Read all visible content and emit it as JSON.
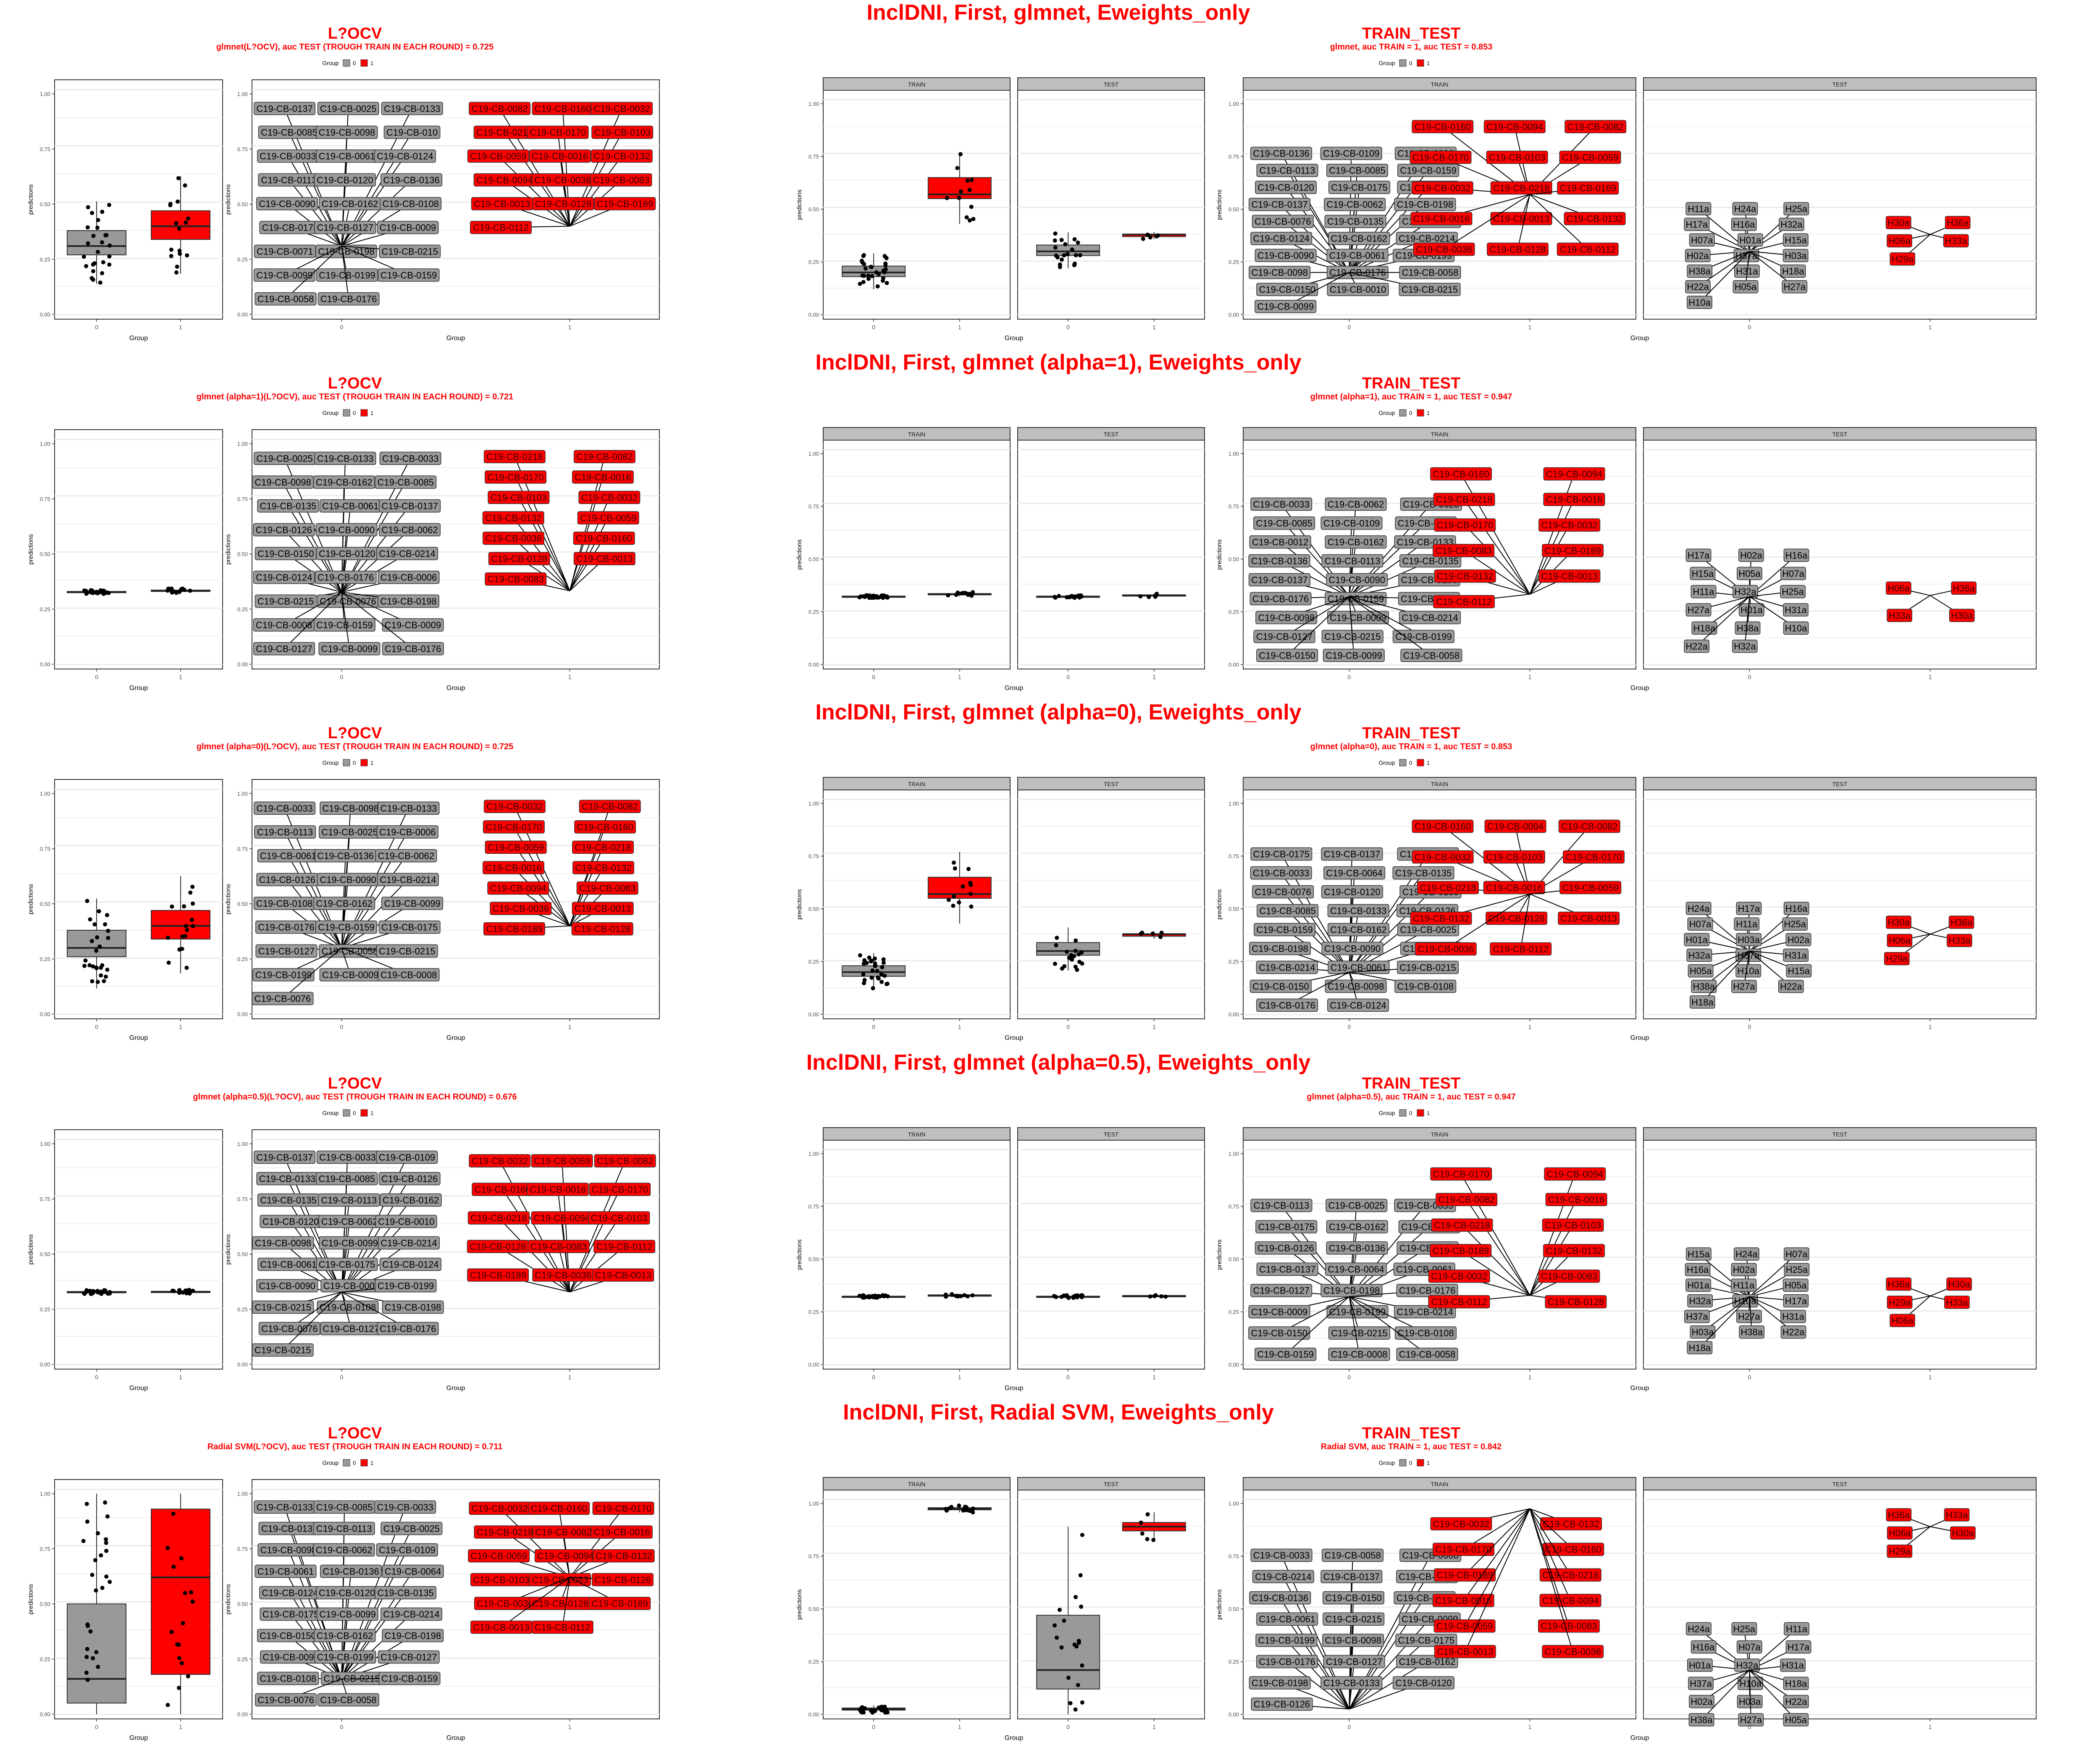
{
  "colors": {
    "group0": "#999999",
    "group1": "#ff0000",
    "title": "#ff0000",
    "panel_border": "#333333",
    "grid": "#ebebeb",
    "strip_fill": "#bfbfbf"
  },
  "common": {
    "y_label": "predictions",
    "x_label": "Group",
    "legend_title": "Group",
    "legend_items": [
      "0",
      "1"
    ],
    "y_ticks": [
      "0.00",
      "0.25",
      "0.50",
      "0.75",
      "1.00"
    ],
    "x_ticks": [
      "0",
      "1"
    ],
    "strip_train": "TRAIN",
    "strip_test": "TEST"
  },
  "rows": [
    {
      "big_title": "InclDNI, First, glmnet, Eweights_only",
      "locv": {
        "title": "L?OCV",
        "subtitle": "glmnet(L?OCV), auc TEST (TROUGH TRAIN IN EACH ROUND) = 0.725"
      },
      "tt": {
        "title": "TRAIN_TEST",
        "subtitle": "glmnet, auc TRAIN = 1, auc TEST = 0.853"
      }
    },
    {
      "big_title": "InclDNI, First, glmnet (alpha=1), Eweights_only",
      "locv": {
        "title": "L?OCV",
        "subtitle": "glmnet (alpha=1)(L?OCV), auc TEST (TROUGH TRAIN IN EACH ROUND) = 0.721"
      },
      "tt": {
        "title": "TRAIN_TEST",
        "subtitle": "glmnet (alpha=1), auc TRAIN = 1, auc TEST = 0.947"
      }
    },
    {
      "big_title": "InclDNI, First, glmnet (alpha=0), Eweights_only",
      "locv": {
        "title": "L?OCV",
        "subtitle": "glmnet (alpha=0)(L?OCV), auc TEST (TROUGH TRAIN IN EACH ROUND) = 0.725"
      },
      "tt": {
        "title": "TRAIN_TEST",
        "subtitle": "glmnet (alpha=0), auc TRAIN = 1, auc TEST = 0.853"
      }
    },
    {
      "big_title": "InclDNI, First, glmnet (alpha=0.5), Eweights_only",
      "locv": {
        "title": "L?OCV",
        "subtitle": "glmnet (alpha=0.5)(L?OCV), auc TEST (TROUGH TRAIN IN EACH ROUND) = 0.676"
      },
      "tt": {
        "title": "TRAIN_TEST",
        "subtitle": "glmnet (alpha=0.5), auc TRAIN = 1, auc TEST = 0.947"
      }
    },
    {
      "big_title": "InclDNI, First, Radial SVM, Eweights_only",
      "locv": {
        "title": "L?OCV",
        "subtitle": "Radial SVM(L?OCV), auc TEST (TROUGH TRAIN IN EACH ROUND) = 0.711"
      },
      "tt": {
        "title": "TRAIN_TEST",
        "subtitle": "Radial SVM, auc TRAIN = 1, auc TEST = 0.842"
      }
    }
  ],
  "chart_data": [
    {
      "type": "box",
      "row": 0,
      "panel": "locv",
      "ylim": [
        0,
        1
      ],
      "box": {
        "g0": [
          0.27,
          0.31,
          0.38
        ],
        "g1": [
          0.34,
          0.4,
          0.47
        ]
      },
      "labels_g0": [
        "C19-CB-0137",
        "C19-CB-0025",
        "C19-CB-0133",
        "C19-CB-0085",
        "C19-CB-0098",
        "C19-CB-010",
        "C19-CB-0033",
        "C19-CB-0061",
        "C19-CB-0124",
        "C19-CB-0113",
        "C19-CB-0120",
        "C19-CB-0136",
        "C19-CB-0090",
        "C19-CB-0162",
        "C19-CB-0108",
        "C19-CB-0175",
        "C19-CB-0127",
        "C19-CB-0009",
        "C19-CB-0071",
        "C19-CB-0198",
        "C19-CB-0215",
        "C19-CB-0099",
        "C19-CB-0199",
        "C19-CB-0159",
        "C19-CB-0058",
        "C19-CB-0176"
      ],
      "labels_g1": [
        "C19-CB-0082",
        "C19-CB-0160",
        "C19-CB-0032",
        "C19-CB-0218",
        "C19-CB-0170",
        "C19-CB-0103",
        "C19-CB-0059",
        "C19-CB-0016",
        "C19-CB-0132",
        "C19-CB-0094",
        "C19-CB-0036",
        "C19-CB-0083",
        "C19-CB-0013",
        "C19-CB-0128",
        "C19-CB-0189",
        "C19-CB-0112"
      ]
    },
    {
      "type": "box",
      "row": 0,
      "panel": "tt",
      "ylim": [
        0,
        1
      ],
      "train": {
        "g0": [
          0.18,
          0.2,
          0.23
        ],
        "g1": [
          0.55,
          0.57,
          0.65
        ]
      },
      "test": {
        "g0": [
          0.28,
          0.3,
          0.33
        ],
        "g1": [
          0.37,
          0.38,
          0.38
        ]
      },
      "labels_train_g0": [
        "C19-CB-0136",
        "C19-CB-0109",
        "C19-CB-0033",
        "C19-CB-0113",
        "C19-CB-0085",
        "C19-CB-0159",
        "C19-CB-0120",
        "C19-CB-0175",
        "C19-CB-0126",
        "C19-CB-0137",
        "C19-CB-0062",
        "C19-CB-0198",
        "C19-CB-0076",
        "C19-CB-0135",
        "C19-CB-0133",
        "C19-CB-0124",
        "C19-CB-0162",
        "C19-CB-0214",
        "C19-CB-0090",
        "C19-CB-0061",
        "C19-CB-0199",
        "C19-CB-0098",
        "C19-CB-0176",
        "C19-CB-0058",
        "C19-CB-0150",
        "C19-CB-0010",
        "C19-CB-0215",
        "C19-CB-0099"
      ],
      "labels_train_g1": [
        "C19-CB-0160",
        "C19-CB-0094",
        "C19-CB-0082",
        "C19-CB-0170",
        "C19-CB-0103",
        "C19-CB-0059",
        "C19-CB-0032",
        "C19-CB-0218",
        "C19-CB-0189",
        "C19-CB-0016",
        "C19-CB-0013",
        "C19-CB-0132",
        "C19-CB-0036",
        "C19-CB-0128",
        "C19-CB-0112"
      ],
      "labels_test_g0": [
        "H11a",
        "H24a",
        "H25a",
        "H17a",
        "H16a",
        "H32a",
        "H07a",
        "H01a",
        "H15a",
        "H02a",
        "H37a",
        "H03a",
        "H38a",
        "H31a",
        "H18a",
        "H22a",
        "H05a",
        "H27a",
        "H10a"
      ],
      "labels_test_g1": [
        "H30a",
        "H36a",
        "H06a",
        "H33a",
        "H29a"
      ]
    },
    {
      "type": "box",
      "row": 1,
      "panel": "locv",
      "ylim": [
        0,
        1
      ],
      "box": {
        "g0": [
          0.325,
          0.327,
          0.33
        ],
        "g1": [
          0.33,
          0.333,
          0.336
        ]
      },
      "labels_g0": [
        "C19-CB-0025",
        "C19-CB-0133",
        "C19-CB-0033",
        "C19-CB-0098",
        "C19-CB-0162",
        "C19-CB-0085",
        "C19-CB-0135",
        "C19-CB-0061",
        "C19-CB-0137",
        "C19-CB-0126",
        "C19-CB-0090",
        "C19-CB-0062",
        "C19-CB-0150",
        "C19-CB-0120",
        "C19-CB-0214",
        "C19-CB-0124",
        "C19-CB-0176",
        "C19-CB-0006",
        "C19-CB-0215",
        "C19-CB-0076",
        "C19-CB-0198",
        "C19-CB-0008",
        "C19-CB-0159",
        "C19-CB-0009",
        "C19-CB-0127",
        "C19-CB-0099",
        "C19-CB-0176"
      ],
      "labels_g1": [
        "C19-CB-0218",
        "C19-CB-0082",
        "C19-CB-0170",
        "C19-CB-0016",
        "C19-CB-0103",
        "C19-CB-0032",
        "C19-CB-0132",
        "C19-CB-0059",
        "C19-CB-0036",
        "C19-CB-0160",
        "C19-CB-0128",
        "C19-CB-0013",
        "C19-CB-0083"
      ]
    },
    {
      "type": "box",
      "row": 1,
      "panel": "tt",
      "ylim": [
        0,
        1
      ],
      "train": {
        "g0": [
          0.32,
          0.322,
          0.324
        ],
        "g1": [
          0.33,
          0.333,
          0.336
        ]
      },
      "test": {
        "g0": [
          0.32,
          0.322,
          0.324
        ],
        "g1": [
          0.325,
          0.327,
          0.33
        ]
      },
      "labels_train_g0": [
        "C19-CB-0033",
        "C19-CB-0062",
        "C19-CB-0025",
        "C19-CB-0085",
        "C19-CB-0109",
        "C19-CB-0175",
        "C19-CB-0012",
        "C19-CB-0162",
        "C19-CB-0133",
        "C19-CB-0136",
        "C19-CB-0113",
        "C19-CB-0135",
        "C19-CB-0137",
        "C19-CB-0090",
        "C19-CB-0198",
        "C19-CB-0176",
        "C19-CB-0159",
        "C19-CB-0124",
        "C19-CB-0098",
        "C19-CB-0009",
        "C19-CB-0214",
        "C19-CB-0127",
        "C19-CB-0215",
        "C19-CB-0199",
        "C19-CB-0150",
        "C19-CB-0099",
        "C19-CB-0058"
      ],
      "labels_train_g1": [
        "C19-CB-0160",
        "C19-CB-0094",
        "C19-CB-0218",
        "C19-CB-0016",
        "C19-CB-0170",
        "C19-CB-0032",
        "C19-CB-0083",
        "C19-CB-0189",
        "C19-CB-0132",
        "C19-CB-0013",
        "C19-CB-0112"
      ],
      "labels_test_g0": [
        "H17a",
        "H02a",
        "H16a",
        "H15a",
        "H05a",
        "H07a",
        "H11a",
        "H32a",
        "H25a",
        "H27a",
        "H01a",
        "H31a",
        "H18a",
        "H38a",
        "H10a",
        "H22a",
        "H32a"
      ],
      "labels_test_g1": [
        "H06a",
        "H36a",
        "H33a",
        "H30a"
      ]
    },
    {
      "type": "box",
      "row": 2,
      "panel": "locv",
      "ylim": [
        0,
        1
      ],
      "box": {
        "g0": [
          0.26,
          0.3,
          0.38
        ],
        "g1": [
          0.34,
          0.4,
          0.47
        ]
      },
      "labels_g0": [
        "C19-CB-0033",
        "C19-CB-0098",
        "C19-CB-0133",
        "C19-CB-0113",
        "C19-CB-0025",
        "C19-CB-0006",
        "C19-CB-0061",
        "C19-CB-0136",
        "C19-CB-0062",
        "C19-CB-0126",
        "C19-CB-0090",
        "C19-CB-0214",
        "C19-CB-0108",
        "C19-CB-0162",
        "C19-CB-0099",
        "C19-CB-0176",
        "C19-CB-0159",
        "C19-CB-0175",
        "C19-CB-0127",
        "C19-CB-0058",
        "C19-CB-0215",
        "C19-CB-0199",
        "C19-CB-0009",
        "C19-CB-0008",
        "C19-CB-0076"
      ],
      "labels_g1": [
        "C19-CB-0032",
        "C19-CB-0082",
        "C19-CB-0170",
        "C19-CB-0160",
        "C19-CB-0059",
        "C19-CB-0218",
        "C19-CB-0016",
        "C19-CB-0132",
        "C19-CB-0094",
        "C19-CB-0083",
        "C19-CB-0036",
        "C19-CB-0013",
        "C19-CB-0189",
        "C19-CB-0128"
      ]
    },
    {
      "type": "box",
      "row": 2,
      "panel": "tt",
      "ylim": [
        0,
        1
      ],
      "train": {
        "g0": [
          0.18,
          0.2,
          0.23
        ],
        "g1": [
          0.55,
          0.57,
          0.65
        ]
      },
      "test": {
        "g0": [
          0.28,
          0.3,
          0.34
        ],
        "g1": [
          0.37,
          0.38,
          0.38
        ]
      },
      "labels_train_g0": [
        "C19-CB-0175",
        "C19-CB-0137",
        "C19-CB-0062",
        "C19-CB-0033",
        "C19-CB-0064",
        "C19-CB-0135",
        "C19-CB-0076",
        "C19-CB-0120",
        "C19-CB-0109",
        "C19-CB-0085",
        "C19-CB-0133",
        "C19-CB-0126",
        "C19-CB-0159",
        "C19-CB-0162",
        "C19-CB-0025",
        "C19-CB-0198",
        "C19-CB-0090",
        "C19-CB-0199",
        "C19-CB-0214",
        "C19-CB-0061",
        "C19-CB-0215",
        "C19-CB-0150",
        "C19-CB-0098",
        "C19-CB-0108",
        "C19-CB-0176",
        "C19-CB-0124"
      ],
      "labels_train_g1": [
        "C19-CB-0160",
        "C19-CB-0094",
        "C19-CB-0082",
        "C19-CB-0032",
        "C19-CB-0103",
        "C19-CB-0170",
        "C19-CB-0218",
        "C19-CB-0016",
        "C19-CB-0059",
        "C19-CB-0132",
        "C19-CB-0128",
        "C19-CB-0013",
        "C19-CB-0036",
        "C19-CB-0112"
      ],
      "labels_test_g0": [
        "H24a",
        "H17a",
        "H16a",
        "H07a",
        "H11a",
        "H25a",
        "H01a",
        "H03a",
        "H02a",
        "H32a",
        "H37a",
        "H31a",
        "H05a",
        "H10a",
        "H15a",
        "H38a",
        "H27a",
        "H22a",
        "H18a"
      ],
      "labels_test_g1": [
        "H30a",
        "H36a",
        "H06a",
        "H33a",
        "H29a"
      ]
    },
    {
      "type": "box",
      "row": 3,
      "panel": "locv",
      "ylim": [
        0,
        1
      ],
      "box": {
        "g0": [
          0.325,
          0.327,
          0.33
        ],
        "g1": [
          0.326,
          0.328,
          0.331
        ]
      },
      "labels_g0": [
        "C19-CB-0137",
        "C19-CB-0033",
        "C19-CB-0109",
        "C19-CB-0133",
        "C19-CB-0085",
        "C19-CB-0126",
        "C19-CB-0135",
        "C19-CB-0113",
        "C19-CB-0162",
        "C19-CB-0120",
        "C19-CB-0062",
        "C19-CB-0010",
        "C19-CB-0098",
        "C19-CB-0099",
        "C19-CB-0214",
        "C19-CB-0061",
        "C19-CB-0175",
        "C19-CB-0124",
        "C19-CB-0090",
        "C19-CB-0009",
        "C19-CB-0199",
        "C19-CB-0215",
        "C19-CB-0108",
        "C19-CB-0198",
        "C19-CB-0076",
        "C19-CB-0127",
        "C19-CB-0176",
        "C19-CB-0215"
      ],
      "labels_g1": [
        "C19-CB-0032",
        "C19-CB-0059",
        "C19-CB-0082",
        "C19-CB-0160",
        "C19-CB-0016",
        "C19-CB-0170",
        "C19-CB-0218",
        "C19-CB-0094",
        "C19-CB-0103",
        "C19-CB-0128",
        "C19-CB-0083",
        "C19-CB-0112",
        "C19-CB-0189",
        "C19-CB-0036",
        "C19-CB-0013"
      ]
    },
    {
      "type": "box",
      "row": 3,
      "panel": "tt",
      "ylim": [
        0,
        1
      ],
      "train": {
        "g0": [
          0.32,
          0.322,
          0.324
        ],
        "g1": [
          0.326,
          0.328,
          0.33
        ]
      },
      "test": {
        "g0": [
          0.32,
          0.322,
          0.324
        ],
        "g1": [
          0.323,
          0.325,
          0.327
        ]
      },
      "labels_train_g0": [
        "C19-CB-0113",
        "C19-CB-0025",
        "C19-CB-0033",
        "C19-CB-0175",
        "C19-CB-0162",
        "C19-CB-0133",
        "C19-CB-0126",
        "C19-CB-0136",
        "C19-CB-0109",
        "C19-CB-0137",
        "C19-CB-0064",
        "C19-CB-0061",
        "C19-CB-0127",
        "C19-CB-0198",
        "C19-CB-0176",
        "C19-CB-0009",
        "C19-CB-0199",
        "C19-CB-0214",
        "C19-CB-0150",
        "C19-CB-0215",
        "C19-CB-0108",
        "C19-CB-0159",
        "C19-CB-0008",
        "C19-CB-0058"
      ],
      "labels_train_g1": [
        "C19-CB-0170",
        "C19-CB-0094",
        "C19-CB-0082",
        "C19-CB-0016",
        "C19-CB-0218",
        "C19-CB-0103",
        "C19-CB-0189",
        "C19-CB-0132",
        "C19-CB-0032",
        "C19-CB-0083",
        "C19-CB-0112",
        "C19-CB-0128"
      ],
      "labels_test_g0": [
        "H15a",
        "H24a",
        "H07a",
        "H16a",
        "H02a",
        "H25a",
        "H01a",
        "H11a",
        "H05a",
        "H32a",
        "H10a",
        "H17a",
        "H37a",
        "H27a",
        "H31a",
        "H03a",
        "H38a",
        "H22a",
        "H18a"
      ],
      "labels_test_g1": [
        "H36a",
        "H30a",
        "H29a",
        "H33a",
        "H06a"
      ]
    },
    {
      "type": "box",
      "row": 4,
      "panel": "locv",
      "ylim": [
        0,
        1
      ],
      "box": {
        "g0": [
          0.05,
          0.16,
          0.5
        ],
        "g1": [
          0.18,
          0.62,
          0.93
        ]
      },
      "labels_g0": [
        "C19-CB-0133",
        "C19-CB-0085",
        "C19-CB-0033",
        "C19-CB-0137",
        "C19-CB-0113",
        "C19-CB-0025",
        "C19-CB-0098",
        "C19-CB-0062",
        "C19-CB-0109",
        "C19-CB-0061",
        "C19-CB-0136",
        "C19-CB-0064",
        "C19-CB-0124",
        "C19-CB-0120",
        "C19-CB-0135",
        "C19-CB-0175",
        "C19-CB-0099",
        "C19-CB-0214",
        "C19-CB-0150",
        "C19-CB-0162",
        "C19-CB-0198",
        "C19-CB-0090",
        "C19-CB-0199",
        "C19-CB-0127",
        "C19-CB-0108",
        "C19-CB-0215",
        "C19-CB-0159",
        "C19-CB-0076",
        "C19-CB-0058"
      ],
      "labels_g1": [
        "C19-CB-0032",
        "C19-CB-0160",
        "C19-CB-0170",
        "C19-CB-0218",
        "C19-CB-0082",
        "C19-CB-0016",
        "C19-CB-0059",
        "C19-CB-0094",
        "C19-CB-0132",
        "C19-CB-0103",
        "C19-CB-0083",
        "C19-CB-0126",
        "C19-CB-0036",
        "C19-CB-0128",
        "C19-CB-0189",
        "C19-CB-0013",
        "C19-CB-0112"
      ]
    },
    {
      "type": "box",
      "row": 4,
      "panel": "tt",
      "ylim": [
        0,
        1
      ],
      "train": {
        "g0": [
          0.02,
          0.025,
          0.03
        ],
        "g1": [
          0.97,
          0.975,
          0.98
        ]
      },
      "test": {
        "g0": [
          0.12,
          0.21,
          0.47
        ],
        "g1": [
          0.87,
          0.89,
          0.91
        ]
      },
      "labels_train_g0": [
        "C19-CB-0033",
        "C19-CB-0058",
        "C19-CB-0008",
        "C19-CB-0214",
        "C19-CB-0137",
        "C19-CB-0076",
        "C19-CB-0136",
        "C19-CB-0150",
        "C19-CB-0090",
        "C19-CB-0061",
        "C19-CB-0215",
        "C19-CB-0099",
        "C19-CB-0199",
        "C19-CB-0098",
        "C19-CB-0175",
        "C19-CB-0176",
        "C19-CB-0127",
        "C19-CB-0162",
        "C19-CB-0198",
        "C19-CB-0133",
        "C19-CB-0120",
        "C19-CB-0126"
      ],
      "labels_train_g1": [
        "C19-CB-0032",
        "C19-CB-0132",
        "C19-CB-0170",
        "C19-CB-0160",
        "C19-CB-0189",
        "C19-CB-0218",
        "C19-CB-0016",
        "C19-CB-0094",
        "C19-CB-0059",
        "C19-CB-0083",
        "C19-CB-0013",
        "C19-CB-0036"
      ],
      "labels_test_g0": [
        "H24a",
        "H25a",
        "H11a",
        "H16a",
        "H07a",
        "H17a",
        "H01a",
        "H32a",
        "H31a",
        "H37a",
        "H10a",
        "H18a",
        "H02a",
        "H03a",
        "H22a",
        "H38a",
        "H27a",
        "H05a"
      ],
      "labels_test_g1": [
        "H36a",
        "H33a",
        "H06a",
        "H30a",
        "H29a"
      ]
    }
  ]
}
